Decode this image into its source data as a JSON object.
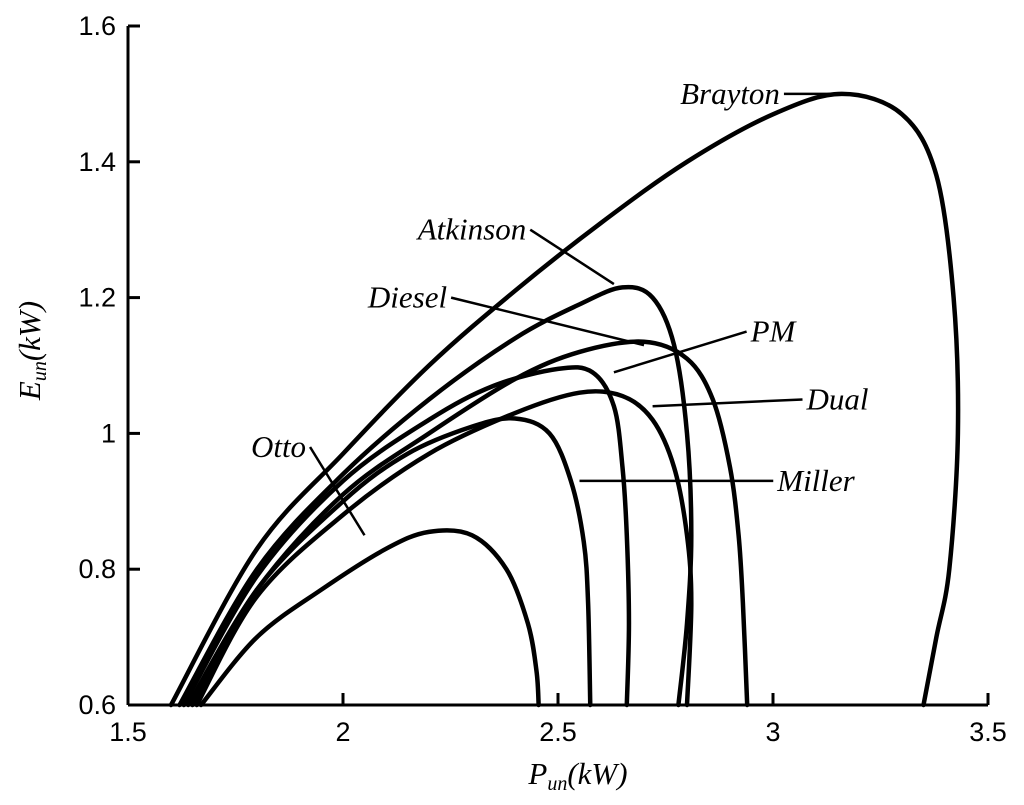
{
  "chart_data": {
    "type": "line",
    "title": "",
    "xlabel": {
      "main": "P",
      "sub": "un",
      "unit": "(kW)"
    },
    "ylabel": {
      "main": "E",
      "sub": "un",
      "unit": "(kW)"
    },
    "xlim": [
      1.5,
      3.5
    ],
    "ylim": [
      0.6,
      1.6
    ],
    "x_ticks": [
      {
        "value": 1.5,
        "label": "1.5"
      },
      {
        "value": 2.0,
        "label": "2"
      },
      {
        "value": 2.5,
        "label": "2.5"
      },
      {
        "value": 3.0,
        "label": "3"
      },
      {
        "value": 3.5,
        "label": "3.5"
      }
    ],
    "y_ticks": [
      {
        "value": 0.6,
        "label": "0.6"
      },
      {
        "value": 0.8,
        "label": "0.8"
      },
      {
        "value": 1.0,
        "label": "1"
      },
      {
        "value": 1.2,
        "label": "1.2"
      },
      {
        "value": 1.4,
        "label": "1.4"
      },
      {
        "value": 1.6,
        "label": "1.6"
      }
    ],
    "grid": false,
    "legend": "none",
    "series": [
      {
        "name": "Brayton",
        "points": [
          [
            1.6,
            0.6
          ],
          [
            1.8,
            0.83
          ],
          [
            2.0,
            0.97
          ],
          [
            2.2,
            1.1
          ],
          [
            2.4,
            1.21
          ],
          [
            2.6,
            1.31
          ],
          [
            2.8,
            1.4
          ],
          [
            3.0,
            1.47
          ],
          [
            3.16,
            1.5
          ],
          [
            3.3,
            1.47
          ],
          [
            3.38,
            1.38
          ],
          [
            3.42,
            1.2
          ],
          [
            3.43,
            1.0
          ],
          [
            3.41,
            0.8
          ],
          [
            3.38,
            0.7
          ],
          [
            3.35,
            0.6
          ]
        ],
        "label_at": [
          2.9,
          1.5
        ],
        "arrow_to": [
          3.15,
          1.5
        ]
      },
      {
        "name": "Atkinson",
        "points": [
          [
            1.62,
            0.6
          ],
          [
            1.8,
            0.8
          ],
          [
            2.0,
            0.94
          ],
          [
            2.2,
            1.05
          ],
          [
            2.4,
            1.14
          ],
          [
            2.55,
            1.19
          ],
          [
            2.65,
            1.215
          ],
          [
            2.72,
            1.2
          ],
          [
            2.77,
            1.13
          ],
          [
            2.8,
            1.0
          ],
          [
            2.81,
            0.85
          ],
          [
            2.8,
            0.72
          ],
          [
            2.78,
            0.6
          ]
        ],
        "label_at": [
          2.3,
          1.3
        ],
        "arrow_to": [
          2.63,
          1.22
        ]
      },
      {
        "name": "Diesel",
        "points": [
          [
            1.64,
            0.6
          ],
          [
            1.8,
            0.77
          ],
          [
            2.0,
            0.91
          ],
          [
            2.2,
            1.0
          ],
          [
            2.4,
            1.08
          ],
          [
            2.55,
            1.12
          ],
          [
            2.7,
            1.135
          ],
          [
            2.8,
            1.11
          ],
          [
            2.86,
            1.05
          ],
          [
            2.9,
            0.95
          ],
          [
            2.92,
            0.85
          ],
          [
            2.93,
            0.75
          ],
          [
            2.94,
            0.6
          ]
        ],
        "label_at": [
          2.15,
          1.2
        ],
        "arrow_to": [
          2.7,
          1.13
        ]
      },
      {
        "name": "PM",
        "points": [
          [
            1.63,
            0.6
          ],
          [
            1.8,
            0.79
          ],
          [
            2.0,
            0.93
          ],
          [
            2.2,
            1.02
          ],
          [
            2.35,
            1.07
          ],
          [
            2.5,
            1.095
          ],
          [
            2.58,
            1.09
          ],
          [
            2.63,
            1.04
          ],
          [
            2.65,
            0.95
          ],
          [
            2.66,
            0.85
          ],
          [
            2.665,
            0.72
          ],
          [
            2.66,
            0.6
          ]
        ],
        "label_at": [
          3.0,
          1.15
        ],
        "arrow_to": [
          2.63,
          1.09
        ]
      },
      {
        "name": "Dual",
        "points": [
          [
            1.66,
            0.6
          ],
          [
            1.8,
            0.76
          ],
          [
            2.0,
            0.88
          ],
          [
            2.2,
            0.97
          ],
          [
            2.4,
            1.03
          ],
          [
            2.55,
            1.06
          ],
          [
            2.65,
            1.055
          ],
          [
            2.72,
            1.02
          ],
          [
            2.77,
            0.95
          ],
          [
            2.8,
            0.85
          ],
          [
            2.81,
            0.75
          ],
          [
            2.8,
            0.6
          ]
        ],
        "label_at": [
          3.15,
          1.05
        ],
        "arrow_to": [
          2.72,
          1.04
        ]
      },
      {
        "name": "Miller",
        "points": [
          [
            1.65,
            0.6
          ],
          [
            1.8,
            0.77
          ],
          [
            2.0,
            0.9
          ],
          [
            2.15,
            0.97
          ],
          [
            2.3,
            1.01
          ],
          [
            2.4,
            1.022
          ],
          [
            2.48,
            1.0
          ],
          [
            2.53,
            0.93
          ],
          [
            2.56,
            0.84
          ],
          [
            2.57,
            0.75
          ],
          [
            2.575,
            0.6
          ]
        ],
        "label_at": [
          3.1,
          0.93
        ],
        "arrow_to": [
          2.55,
          0.93
        ]
      },
      {
        "name": "Otto",
        "points": [
          [
            1.67,
            0.6
          ],
          [
            1.8,
            0.7
          ],
          [
            1.95,
            0.77
          ],
          [
            2.1,
            0.83
          ],
          [
            2.2,
            0.855
          ],
          [
            2.3,
            0.85
          ],
          [
            2.38,
            0.8
          ],
          [
            2.43,
            0.72
          ],
          [
            2.45,
            0.65
          ],
          [
            2.455,
            0.6
          ]
        ],
        "label_at": [
          1.85,
          0.98
        ],
        "arrow_to": [
          2.05,
          0.85
        ]
      }
    ]
  }
}
